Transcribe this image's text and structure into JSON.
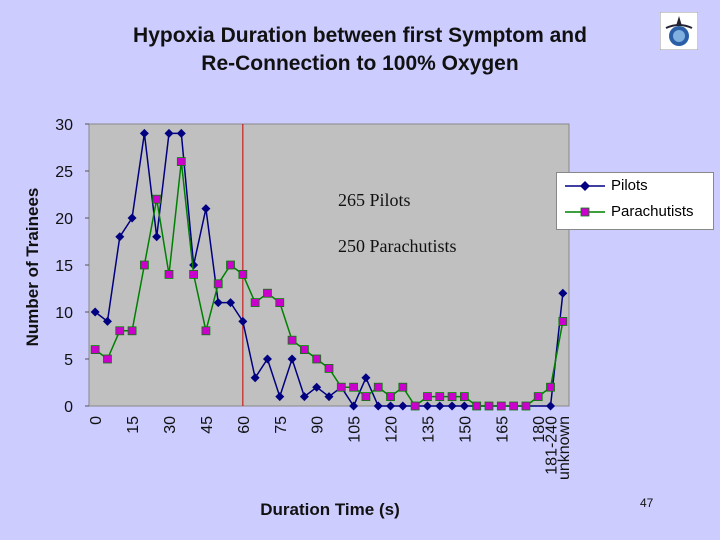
{
  "slide": {
    "page_number": "47"
  },
  "chart_data": {
    "type": "line",
    "title_line1": "Hypoxia Duration between first Symptom and",
    "title_line2": "Re-Connection to 100% Oxygen",
    "xlabel": "Duration Time (s)",
    "ylabel": "Number of Trainees",
    "ylim": [
      0,
      30
    ],
    "yticks": [
      0,
      5,
      10,
      15,
      20,
      25,
      30
    ],
    "categories": [
      "0",
      "5",
      "10",
      "15",
      "20",
      "25",
      "30",
      "35",
      "40",
      "45",
      "50",
      "55",
      "60",
      "65",
      "70",
      "75",
      "80",
      "85",
      "90",
      "95",
      "100",
      "105",
      "110",
      "115",
      "120",
      "125",
      "130",
      "135",
      "140",
      "145",
      "150",
      "155",
      "160",
      "165",
      "170",
      "175",
      "180",
      "181-240",
      "unknown"
    ],
    "x_tick_labels": [
      "0",
      "15",
      "30",
      "45",
      "60",
      "75",
      "90",
      "105",
      "120",
      "135",
      "150",
      "165",
      "180",
      "181-240",
      "unknown"
    ],
    "x_tick_categories": [
      "0",
      "15",
      "30",
      "45",
      "60",
      "75",
      "90",
      "105",
      "120",
      "135",
      "150",
      "165",
      "180",
      "181-240",
      "unknown"
    ],
    "reference_line": {
      "x_category": "60",
      "color": "#cc0000"
    },
    "grid": false,
    "plot_background": "#c0c0c0",
    "legend_position": "right",
    "series": [
      {
        "name": "Pilots",
        "color": "#000080",
        "marker": "diamond",
        "marker_color": "#000080",
        "values": [
          10,
          9,
          18,
          20,
          29,
          18,
          29,
          29,
          15,
          21,
          11,
          11,
          9,
          3,
          5,
          1,
          5,
          1,
          2,
          1,
          2,
          0,
          3,
          0,
          0,
          0,
          0,
          0,
          0,
          0,
          0,
          null,
          null,
          null,
          null,
          0,
          null,
          0,
          12
        ]
      },
      {
        "name": "Parachutists",
        "color": "#008000",
        "marker": "square",
        "marker_color": "#cc00cc",
        "values": [
          6,
          5,
          8,
          8,
          15,
          22,
          14,
          26,
          14,
          8,
          13,
          15,
          14,
          11,
          12,
          11,
          7,
          6,
          5,
          4,
          2,
          2,
          1,
          2,
          1,
          2,
          0,
          1,
          1,
          1,
          1,
          0,
          0,
          0,
          0,
          0,
          1,
          2,
          9
        ]
      }
    ],
    "annotations": [
      "265 Pilots",
      "250 Parachutists"
    ]
  }
}
